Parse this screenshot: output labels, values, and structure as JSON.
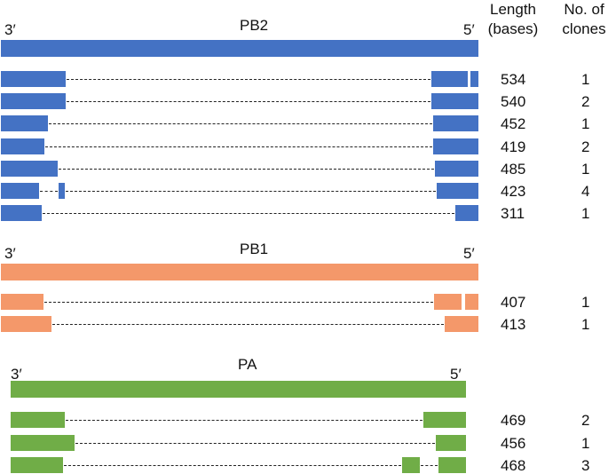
{
  "headers": {
    "length": "Length (bases)",
    "clones": "No. of clones"
  },
  "genes": [
    {
      "name": "PB2",
      "color": "#4472C4",
      "end_left": "3′",
      "end_right": "5′",
      "segments": [
        {
          "length": "534",
          "clones": "1"
        },
        {
          "length": "540",
          "clones": "2"
        },
        {
          "length": "452",
          "clones": "1"
        },
        {
          "length": "419",
          "clones": "2"
        },
        {
          "length": "485",
          "clones": "1"
        },
        {
          "length": "423",
          "clones": "4"
        },
        {
          "length": "311",
          "clones": "1"
        }
      ]
    },
    {
      "name": "PB1",
      "color": "#F4986A",
      "end_left": "3′",
      "end_right": "5′",
      "segments": [
        {
          "length": "407",
          "clones": "1"
        },
        {
          "length": "413",
          "clones": "1"
        }
      ]
    },
    {
      "name": "PA",
      "color": "#70AD47",
      "end_left": "3′",
      "end_right": "5′",
      "segments": [
        {
          "length": "469",
          "clones": "2"
        },
        {
          "length": "456",
          "clones": "1"
        },
        {
          "length": "468",
          "clones": "3"
        }
      ]
    }
  ]
}
